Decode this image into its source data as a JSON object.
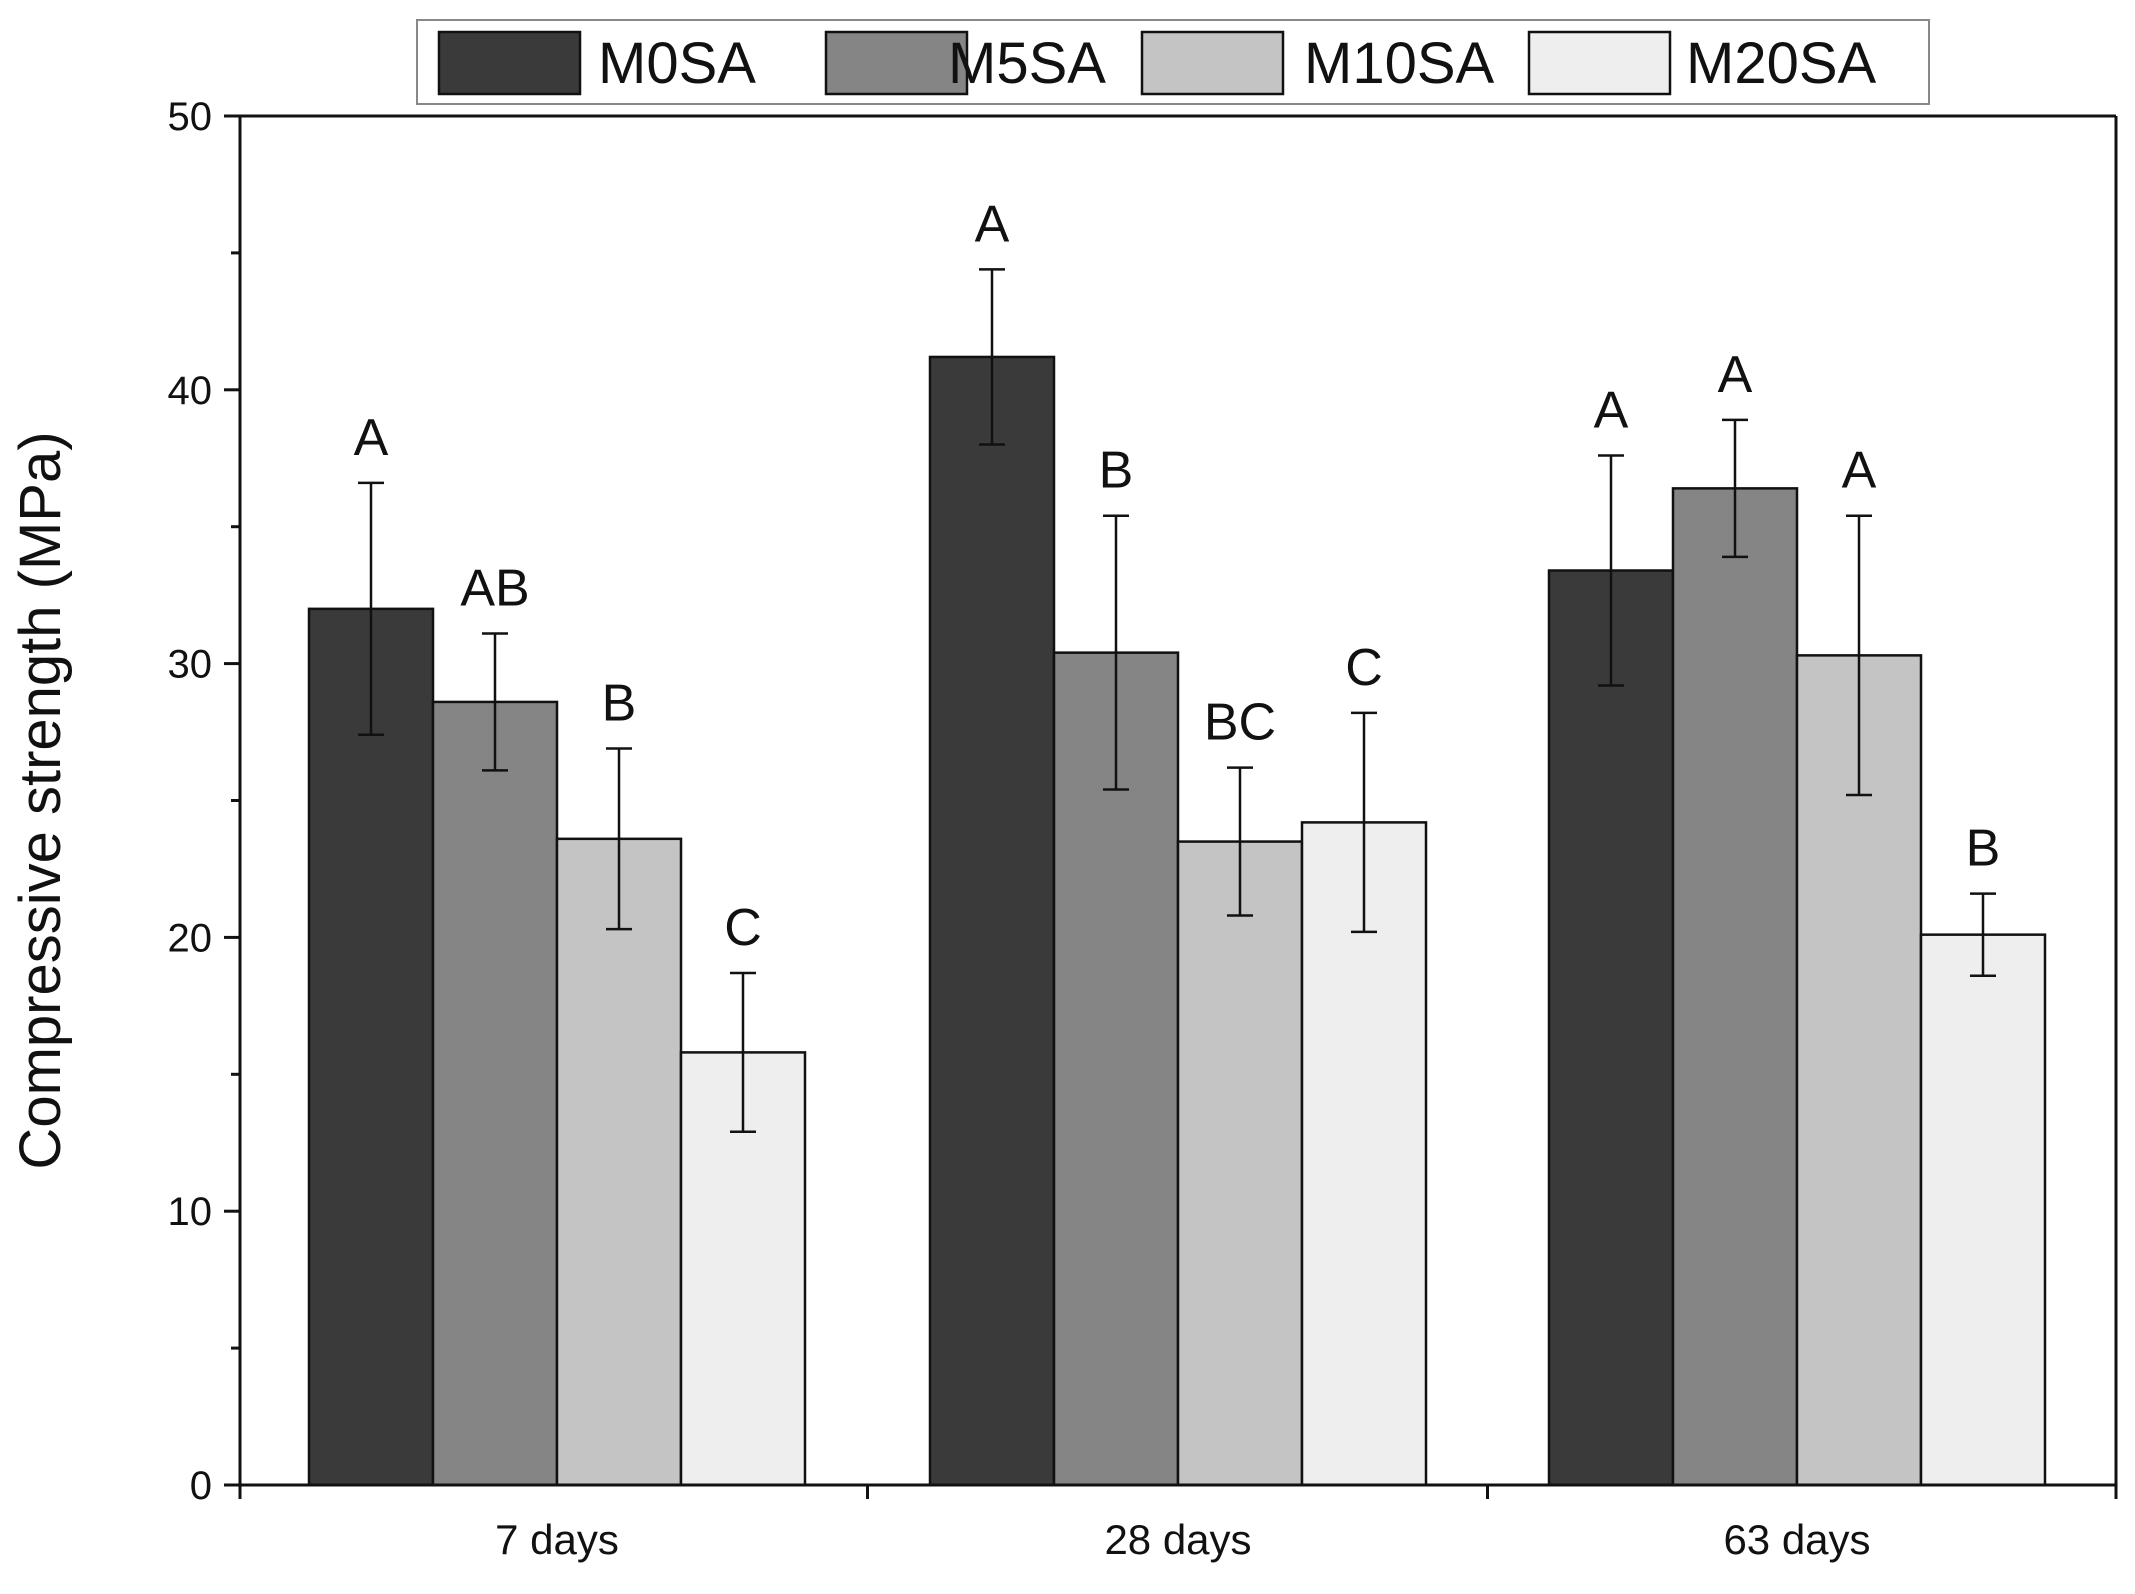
{
  "chart_data": {
    "type": "bar",
    "title": "",
    "xlabel": "",
    "ylabel": "Compressive strength (MPa)",
    "ylim": [
      0,
      50
    ],
    "yticks": [
      "0",
      "10",
      "20",
      "30",
      "40",
      "50"
    ],
    "ytick_values": [
      0,
      10,
      20,
      30,
      40,
      50
    ],
    "minor_tick_step": 5,
    "grid": false,
    "legend_position": "top-center",
    "categories": [
      "7 days",
      "28 days",
      "63 days"
    ],
    "series": [
      {
        "name": "M0SA",
        "color": "#3a3a3a",
        "values": [
          32.0,
          41.2,
          33.4
        ],
        "errors": [
          4.6,
          3.2,
          4.2
        ],
        "letters": [
          "A",
          "A",
          "A"
        ]
      },
      {
        "name": "M5SA",
        "color": "#858585",
        "values": [
          28.6,
          30.4,
          36.4
        ],
        "errors": [
          2.5,
          5.0,
          2.5
        ],
        "letters": [
          "AB",
          "B",
          "A"
        ]
      },
      {
        "name": "M10SA",
        "color": "#c4c4c4",
        "values": [
          23.6,
          23.5,
          30.3
        ],
        "errors": [
          3.3,
          2.7,
          5.1
        ],
        "letters": [
          "B",
          "BC",
          "A"
        ]
      },
      {
        "name": "M20SA",
        "color": "#eeeeee",
        "values": [
          15.8,
          24.2,
          20.1
        ],
        "errors": [
          2.9,
          4.0,
          1.5
        ],
        "letters": [
          "C",
          "C",
          "B"
        ]
      }
    ]
  }
}
